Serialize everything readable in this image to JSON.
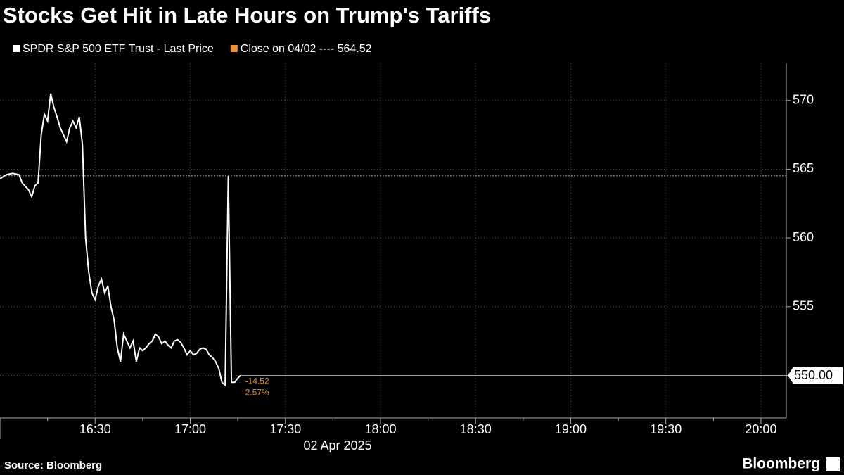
{
  "chart_data": {
    "type": "line",
    "title": "Stocks Get Hit in Late Hours on Trump's Tariffs",
    "x_label": "02 Apr 2025",
    "source": "Source: Bloomberg",
    "brand": "Bloomberg",
    "x": [
      "16:00",
      "16:02",
      "16:04",
      "16:06",
      "16:07",
      "16:09",
      "16:10",
      "16:11",
      "16:12",
      "16:13",
      "16:14",
      "16:15",
      "16:16",
      "16:17",
      "16:18",
      "16:19",
      "16:20",
      "16:21",
      "16:22",
      "16:23",
      "16:24",
      "16:25",
      "16:26",
      "16:27",
      "16:28",
      "16:29",
      "16:30",
      "16:31",
      "16:32",
      "16:33",
      "16:34",
      "16:35",
      "16:36",
      "16:37",
      "16:38",
      "16:39",
      "16:40",
      "16:41",
      "16:42",
      "16:43",
      "16:44",
      "16:45",
      "16:46",
      "16:47",
      "16:48",
      "16:49",
      "16:50",
      "16:51",
      "16:52",
      "16:53",
      "16:54",
      "16:55",
      "16:56",
      "16:57",
      "16:58",
      "16:59",
      "17:00",
      "17:01",
      "17:02",
      "17:03",
      "17:04",
      "17:05",
      "17:06",
      "17:07",
      "17:08",
      "17:09",
      "17:10",
      "17:11",
      "17:12",
      "17:13",
      "17:14",
      "17:15",
      "17:16"
    ],
    "series": [
      {
        "name": "SPDR S&P 500 ETF Trust - Last Price",
        "color": "#ffffff",
        "values": [
          564.3,
          564.6,
          564.7,
          564.6,
          564.0,
          563.5,
          563.0,
          563.8,
          564.0,
          567.5,
          569.0,
          568.5,
          570.5,
          569.5,
          568.8,
          568.0,
          567.5,
          567.0,
          568.0,
          568.5,
          568.0,
          568.8,
          566.8,
          560.0,
          557.5,
          556.0,
          555.5,
          556.5,
          557.0,
          556.0,
          556.5,
          555.0,
          554.0,
          552.0,
          551.0,
          553.0,
          552.5,
          552.0,
          552.5,
          551.0,
          552.0,
          551.8,
          552.0,
          552.3,
          552.5,
          553.0,
          552.8,
          552.3,
          552.5,
          552.2,
          552.0,
          552.5,
          552.6,
          552.4,
          552.0,
          551.5,
          551.8,
          551.5,
          551.6,
          551.9,
          552.0,
          551.9,
          551.5,
          551.3,
          551.0,
          550.5,
          549.5,
          549.3,
          564.5,
          549.5,
          549.5,
          549.8,
          550.0
        ]
      }
    ],
    "reference_lines": [
      {
        "name": "Close on 04/02 ---- 564.52",
        "value": 564.52,
        "color": "#e8913a"
      }
    ],
    "last_value": {
      "value": 550,
      "label": "550.00"
    },
    "change": -14.52,
    "change_pct": {
      "value": -2.57,
      "label": "-2.57%"
    },
    "xlim": [
      "16:00",
      "20:08"
    ],
    "xticks": [
      "16:30",
      "17:00",
      "17:30",
      "18:00",
      "18:30",
      "19:00",
      "19:30",
      "20:00"
    ],
    "ylim": [
      546.9,
      572.7
    ],
    "yticks": [
      550,
      555,
      560,
      565,
      570
    ],
    "grid": true
  }
}
